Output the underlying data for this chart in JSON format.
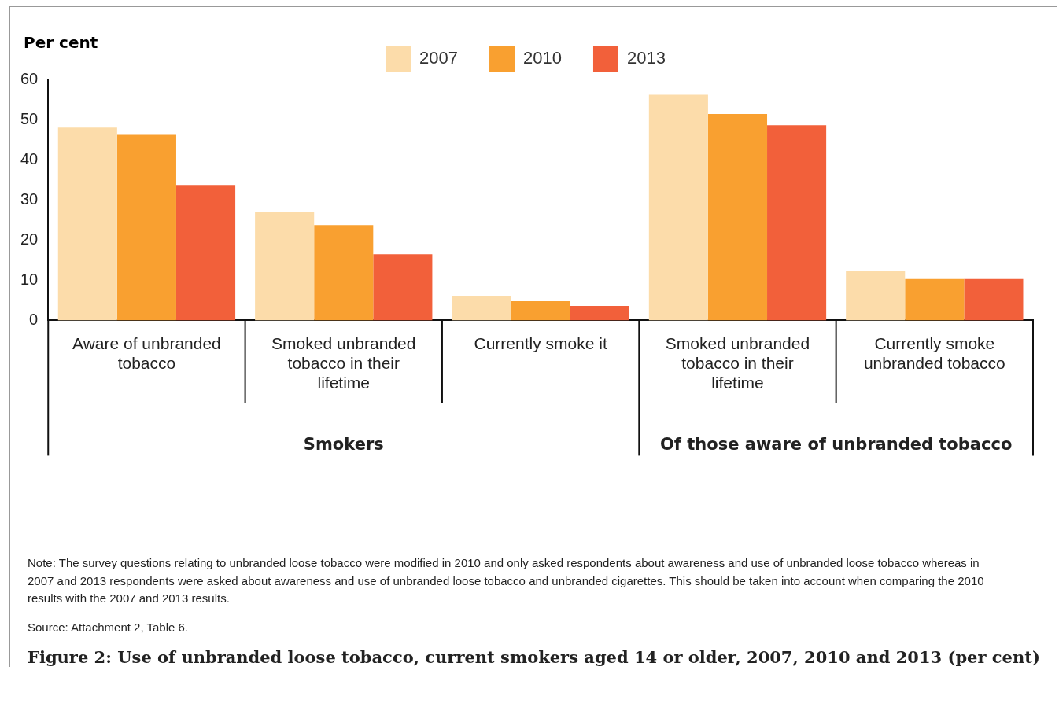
{
  "chart_data": {
    "type": "bar",
    "title": "Figure 2: Use of unbranded loose tobacco, current smokers aged 14 or older, 2007, 2010 and 2013 (per cent)",
    "ylabel": "Per cent",
    "categories": [
      "Aware of unbranded tobacco",
      "Smoked unbranded tobacco in their lifetime",
      "Currently smoke it",
      "Smoked unbranded tobacco in their lifetime",
      "Currently smoke unbranded tobacco"
    ],
    "series": [
      {
        "name": "2007",
        "color": "#fcdcaa",
        "values": [
          48.0,
          27.0,
          6.1,
          56.2,
          12.4
        ]
      },
      {
        "name": "2010",
        "color": "#f9a030",
        "values": [
          46.2,
          23.7,
          4.8,
          51.4,
          10.3
        ]
      },
      {
        "name": "2013",
        "color": "#f2603a",
        "values": [
          33.7,
          16.5,
          3.6,
          48.6,
          10.3
        ]
      }
    ],
    "ylim": [
      0,
      60
    ],
    "yticks": [
      0,
      10,
      20,
      30,
      40,
      50,
      60
    ],
    "grid": false,
    "legend": "top",
    "annotations": [
      "Smokers",
      "Of those aware of unbranded tobacco",
      "Note: The survey questions relating to unbranded loose tobacco were modified in 2010 and only asked respondents about awareness and use of unbranded loose tobacco whereas in 2007 and 2013 respondents were asked about awareness and use of unbranded loose tobacco and unbranded cigarettes. This should be taken into account when comparing the 2010 results with the 2007 and 2013 results.",
      "Source: Attachment 2, Table 6."
    ]
  }
}
